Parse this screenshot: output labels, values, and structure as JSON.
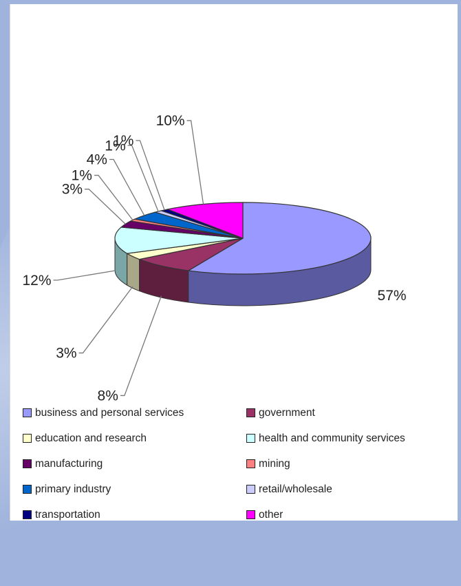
{
  "chart_data": {
    "type": "pie",
    "title": "",
    "slices": [
      {
        "label": "business and personal services",
        "value": 57,
        "value_label": "57%",
        "color": "#9999ff",
        "side": "#5a5aa0"
      },
      {
        "label": "government",
        "value": 8,
        "value_label": "8%",
        "color": "#993366",
        "side": "#5e1f3f"
      },
      {
        "label": "education and research",
        "value": 3,
        "value_label": "3%",
        "color": "#ffffcc",
        "side": "#a8a888"
      },
      {
        "label": "health and community services",
        "value": 12,
        "value_label": "12%",
        "color": "#ccffff",
        "side": "#7ba6a6"
      },
      {
        "label": "manufacturing",
        "value": 3,
        "value_label": "3%",
        "color": "#660066",
        "side": "#3d003d"
      },
      {
        "label": "mining",
        "value": 1,
        "value_label": "1%",
        "color": "#ff8080",
        "side": "#a05050"
      },
      {
        "label": "primary industry",
        "value": 4,
        "value_label": "4%",
        "color": "#0066cc",
        "side": "#003f80"
      },
      {
        "label": "retail/wholesale",
        "value": 1,
        "value_label": "1%",
        "color": "#ccccff",
        "side": "#8080a8"
      },
      {
        "label": "transportation",
        "value": 1,
        "value_label": "1%",
        "color": "#000080",
        "side": "#00004a"
      },
      {
        "label": "other",
        "value": 10,
        "value_label": "10%",
        "color": "#ff00ff",
        "side": "#a000a0"
      }
    ],
    "legend": {
      "placement": "bottom",
      "entries": [
        "business and personal services",
        "government",
        "education and research",
        "health and community services",
        "manufacturing",
        "mining",
        "primary industry",
        "retail/wholesale",
        "transportation",
        "other"
      ]
    }
  }
}
